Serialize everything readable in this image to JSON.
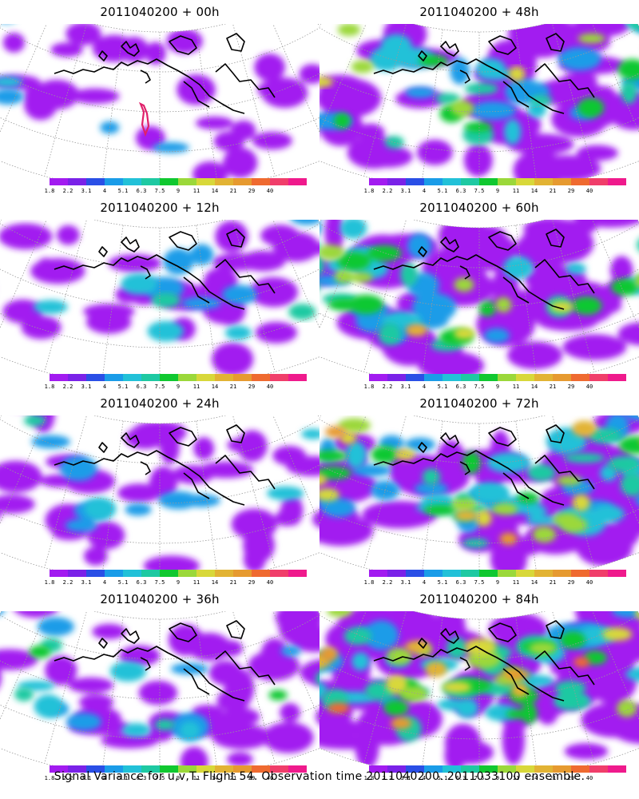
{
  "panels": [
    {
      "title": "2011040200 + 00h",
      "intensity": 0.15
    },
    {
      "title": "2011040200 + 48h",
      "intensity": 0.55
    },
    {
      "title": "2011040200 + 12h",
      "intensity": 0.25
    },
    {
      "title": "2011040200 + 60h",
      "intensity": 0.65
    },
    {
      "title": "2011040200 + 24h",
      "intensity": 0.32
    },
    {
      "title": "2011040200 + 72h",
      "intensity": 0.75
    },
    {
      "title": "2011040200 + 36h",
      "intensity": 0.42
    },
    {
      "title": "2011040200 + 84h",
      "intensity": 0.88
    }
  ],
  "colorbar": {
    "colors": [
      "#a21bf0",
      "#7a22e8",
      "#2a4fe6",
      "#1a9ce8",
      "#22c1d8",
      "#1ec9a2",
      "#10c830",
      "#9bd83a",
      "#d8d83a",
      "#e2b334",
      "#e69a30",
      "#ef6a30",
      "#f03e6a",
      "#ef1a8c"
    ],
    "labels": [
      "1.8",
      "2.2",
      "3.1",
      "4",
      "5.1",
      "6.3",
      "7.5",
      "9",
      "11",
      "14",
      "21",
      "29",
      "40"
    ]
  },
  "footer": "Signal Variance for u,v,T. Flight 54. Observation time 2011040200. 2011033100 ensemble."
}
